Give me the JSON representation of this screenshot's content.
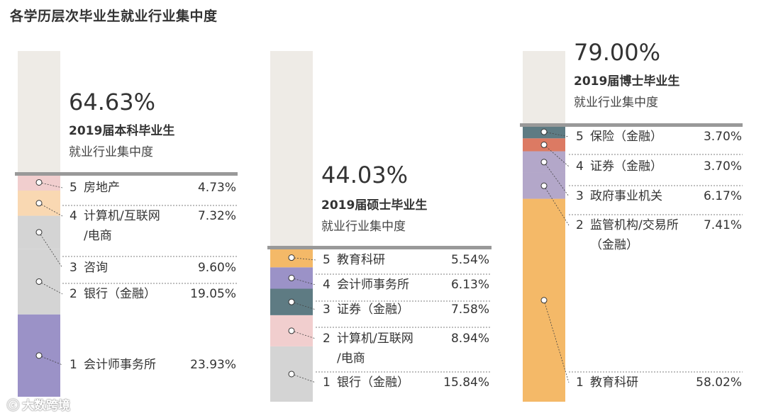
{
  "title": "各学历层次毕业生就业行业集中度",
  "watermark": "大数跨境",
  "chart_data": [
    {
      "type": "stacked-bar",
      "total": "64.63%",
      "total_value": 64.63,
      "name": "2019届本科毕业生",
      "subtitle": "就业行业集中度",
      "segments": [
        {
          "rank": "1",
          "label": "会计师事务所",
          "value": 23.93,
          "value_text": "23.93%",
          "color": "#9b92c7"
        },
        {
          "rank": "2",
          "label": "银行（金融）",
          "value": 19.05,
          "value_text": "19.05%",
          "color": "#d4d4d4"
        },
        {
          "rank": "3",
          "label": "咨询",
          "value": 9.6,
          "value_text": "9.60%",
          "color": "#d4d4d4"
        },
        {
          "rank": "4",
          "label": "计算机/互联网/电商",
          "value": 7.32,
          "value_text": "7.32%",
          "color": "#f9d8b2"
        },
        {
          "rank": "5",
          "label": "房地产",
          "value": 4.73,
          "value_text": "4.73%",
          "color": "#f1cece"
        }
      ]
    },
    {
      "type": "stacked-bar",
      "total": "44.03%",
      "total_value": 44.03,
      "name": "2019届硕士毕业生",
      "subtitle": "就业行业集中度",
      "segments": [
        {
          "rank": "1",
          "label": "银行（金融）",
          "value": 15.84,
          "value_text": "15.84%",
          "color": "#d4d4d4"
        },
        {
          "rank": "2",
          "label": "计算机/互联网/电商",
          "value": 8.94,
          "value_text": "8.94%",
          "color": "#f1cece"
        },
        {
          "rank": "3",
          "label": "证券（金融）",
          "value": 7.58,
          "value_text": "7.58%",
          "color": "#5e7b83"
        },
        {
          "rank": "4",
          "label": "会计师事务所",
          "value": 6.13,
          "value_text": "6.13%",
          "color": "#9b92c7"
        },
        {
          "rank": "5",
          "label": "教育科研",
          "value": 5.54,
          "value_text": "5.54%",
          "color": "#f4b968"
        }
      ]
    },
    {
      "type": "stacked-bar",
      "total": "79.00%",
      "total_value": 79.0,
      "name": "2019届博士毕业生",
      "subtitle": "就业行业集中度",
      "segments": [
        {
          "rank": "1",
          "label": "教育科研",
          "value": 58.02,
          "value_text": "58.02%",
          "color": "#f4b968"
        },
        {
          "rank": "2",
          "label": "监管机构/交易所（金融）",
          "value": 7.41,
          "value_text": "7.41%",
          "color": "#b3a7c9"
        },
        {
          "rank": "3",
          "label": "政府事业机关",
          "value": 6.17,
          "value_text": "6.17%",
          "color": "#b3a7c9"
        },
        {
          "rank": "4",
          "label": "证券（金融）",
          "value": 3.7,
          "value_text": "3.70%",
          "color": "#dc7a63"
        },
        {
          "rank": "5",
          "label": "保险（金融）",
          "value": 3.7,
          "value_text": "3.70%",
          "color": "#5e7b83"
        }
      ]
    }
  ]
}
